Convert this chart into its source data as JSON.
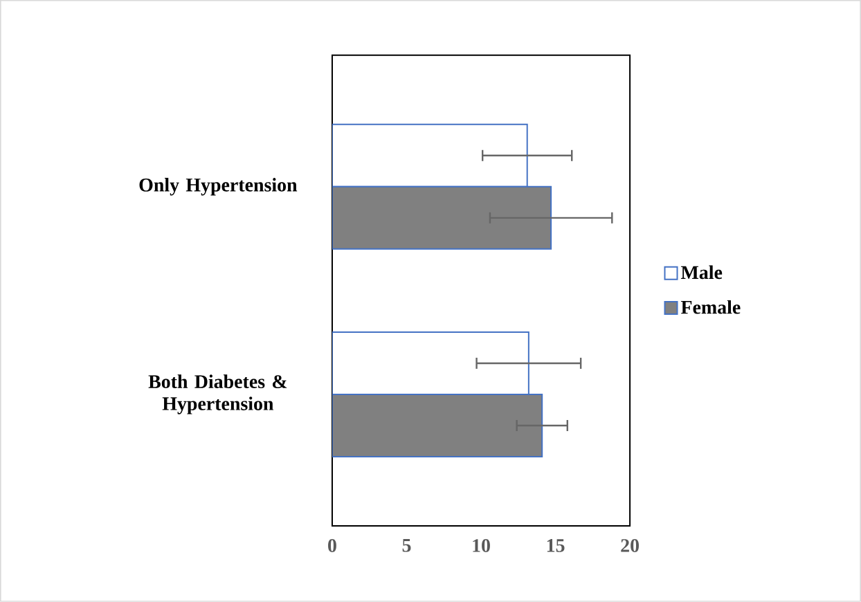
{
  "chart_data": {
    "type": "bar",
    "orientation": "horizontal",
    "categories": [
      "Only Hypertension",
      "Both Diabetes & Hypertension"
    ],
    "series": [
      {
        "name": "Male",
        "color": "#ffffff",
        "values": [
          13.1,
          13.2
        ],
        "errors": [
          3.0,
          3.5
        ]
      },
      {
        "name": "Female",
        "color": "#808080",
        "values": [
          14.7,
          14.1
        ],
        "errors": [
          4.1,
          1.7
        ]
      }
    ],
    "xlim": [
      0,
      20
    ],
    "xticks": [
      0,
      5,
      10,
      15,
      20
    ],
    "grid": false,
    "legend": "right"
  }
}
